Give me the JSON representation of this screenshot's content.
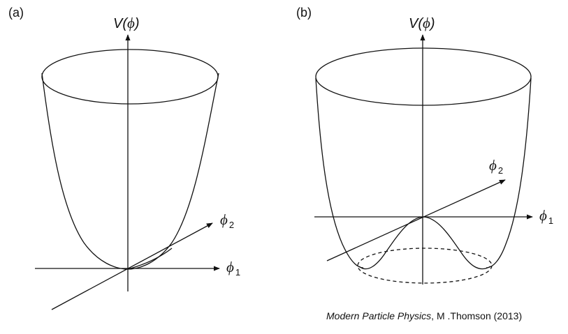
{
  "panels": [
    {
      "label": "(a)",
      "potential_label": "V(",
      "potential_phi": "ϕ",
      "potential_close": ")",
      "axis1_symbol": "ϕ",
      "axis1_sub": "1",
      "axis2_symbol": "ϕ",
      "axis2_sub": "2"
    },
    {
      "label": "(b)",
      "potential_label": "V(",
      "potential_phi": "ϕ",
      "potential_close": ")",
      "axis1_symbol": "ϕ",
      "axis1_sub": "1",
      "axis2_symbol": "ϕ",
      "axis2_sub": "2"
    }
  ],
  "credit": {
    "title": "Modern Particle Physics",
    "rest": ", M .Thomson (2013)"
  }
}
